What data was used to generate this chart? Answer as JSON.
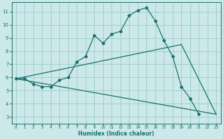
{
  "xlabel": "Humidex (Indice chaleur)",
  "bg_color": "#cce8e8",
  "line_color": "#1a7070",
  "grid_color": "#99cccc",
  "xlim": [
    -0.5,
    23.5
  ],
  "ylim": [
    2.5,
    11.7
  ],
  "xticks": [
    0,
    1,
    2,
    3,
    4,
    5,
    6,
    7,
    8,
    9,
    10,
    11,
    12,
    13,
    14,
    15,
    16,
    17,
    18,
    19,
    20,
    21,
    22,
    23
  ],
  "yticks": [
    3,
    4,
    5,
    6,
    7,
    8,
    9,
    10,
    11
  ],
  "upper_x": [
    0,
    1,
    2,
    3,
    4,
    5,
    6,
    7,
    8,
    9,
    10,
    11,
    12,
    13,
    14,
    15,
    16,
    17,
    18,
    19,
    20,
    21
  ],
  "upper_y": [
    5.9,
    5.9,
    5.5,
    5.3,
    5.3,
    5.8,
    6.0,
    7.2,
    7.6,
    9.2,
    8.6,
    9.3,
    9.5,
    10.7,
    11.1,
    11.3,
    10.3,
    8.8,
    7.6,
    5.3,
    4.4,
    3.2
  ],
  "mid_line_x": [
    0,
    19
  ],
  "mid_line_y": [
    5.9,
    8.5
  ],
  "low_line_x": [
    0,
    23
  ],
  "low_line_y": [
    5.9,
    3.2
  ]
}
